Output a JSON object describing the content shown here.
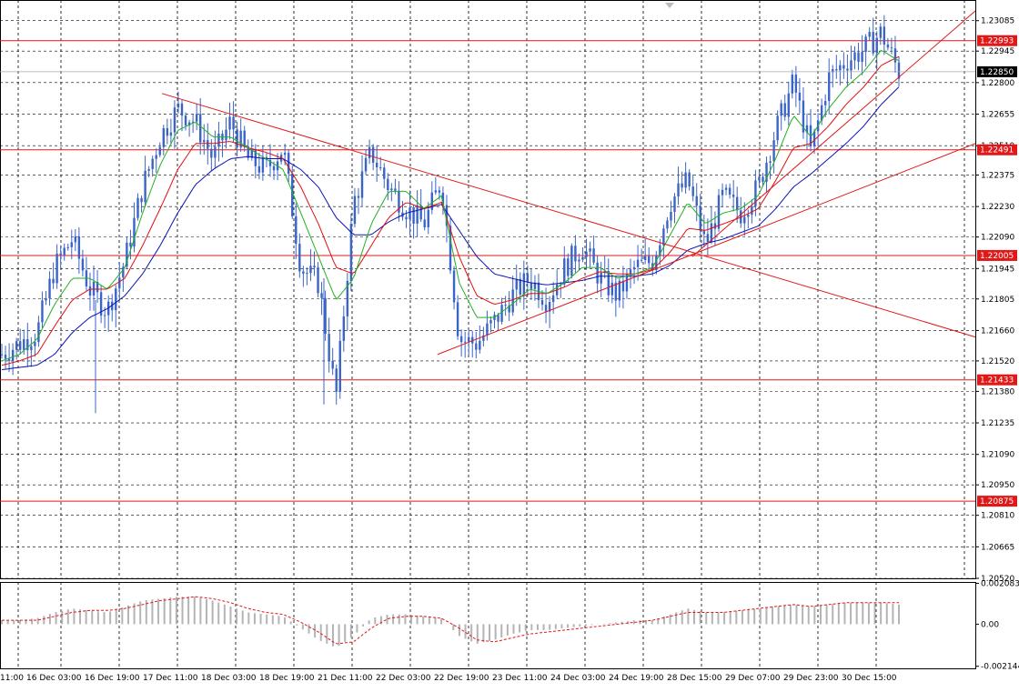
{
  "colors": {
    "background": "#ffffff",
    "grid": "#000000",
    "candle": "#3b64c8",
    "ma_fast": "#22b022",
    "ma_mid": "#e01010",
    "ma_slow": "#0a14b4",
    "level": "#e01818",
    "trend": "#e01818",
    "osc_hist": "#b4b4b4",
    "osc_signal": "#e01818",
    "bid_label": "#000000"
  },
  "chart_data": [
    {
      "type": "candlestick",
      "title": "",
      "ylim": [
        1.2052,
        1.2318
      ],
      "y_ticks": [
        "1.23085",
        "1.22945",
        "1.22800",
        "1.22655",
        "1.22510",
        "1.22375",
        "1.22230",
        "1.22090",
        "1.21945",
        "1.21805",
        "1.21660",
        "1.21520",
        "1.21380",
        "1.21235",
        "1.21090",
        "1.20950",
        "1.20810",
        "1.20665",
        "1.20520"
      ],
      "x_ticks": [
        "11:00",
        "16 Dec 03:00",
        "16 Dec 19:00",
        "17 Dec 11:00",
        "18 Dec 03:00",
        "18 Dec 19:00",
        "21 Dec 11:00",
        "22 Dec 03:00",
        "22 Dec 19:00",
        "23 Dec 11:00",
        "24 Dec 03:00",
        "24 Dec 19:00",
        "28 Dec 15:00",
        "29 Dec 07:00",
        "29 Dec 23:00",
        "30 Dec 15:00"
      ],
      "grid": true,
      "current_price": "1.22850",
      "levels": [
        "1.22993",
        "1.22491",
        "1.22005",
        "1.21433",
        "1.20875"
      ],
      "anchors": [
        1.2155,
        1.216,
        1.2165,
        1.2195,
        1.2208,
        1.2185,
        1.2175,
        1.2198,
        1.2232,
        1.2255,
        1.2268,
        1.2262,
        1.2245,
        1.2262,
        1.2245,
        1.224,
        1.225,
        1.2195,
        1.2188,
        1.2135,
        1.2225,
        1.2248,
        1.2232,
        1.2222,
        1.2215,
        1.2235,
        1.2162,
        1.216,
        1.217,
        1.2182,
        1.219,
        1.218,
        1.2195,
        1.2205,
        1.219,
        1.2182,
        1.2195,
        1.2198,
        1.2225,
        1.2235,
        1.2205,
        1.2228,
        1.222,
        1.2232,
        1.2258,
        1.228,
        1.2248,
        1.2282,
        1.229,
        1.2295,
        1.2303,
        1.2285
      ],
      "ma_fast_anchors": [
        1.2152,
        1.2155,
        1.2162,
        1.2178,
        1.219,
        1.219,
        1.2185,
        1.2195,
        1.222,
        1.2242,
        1.2258,
        1.2262,
        1.2255,
        1.2255,
        1.225,
        1.2245,
        1.224,
        1.222,
        1.22,
        1.218,
        1.219,
        1.2215,
        1.223,
        1.223,
        1.2222,
        1.2228,
        1.2188,
        1.2172,
        1.2172,
        1.2178,
        1.2185,
        1.2183,
        1.2188,
        1.2195,
        1.2195,
        1.219,
        1.2192,
        1.2195,
        1.221,
        1.2225,
        1.2215,
        1.222,
        1.2222,
        1.2228,
        1.2245,
        1.2265,
        1.2255,
        1.2268,
        1.2278,
        1.2285,
        1.2295,
        1.229
      ],
      "ma_mid_anchors": [
        1.215,
        1.2152,
        1.2155,
        1.2168,
        1.218,
        1.2185,
        1.2185,
        1.219,
        1.2205,
        1.2222,
        1.224,
        1.2252,
        1.2252,
        1.2253,
        1.225,
        1.2248,
        1.2245,
        1.2232,
        1.2215,
        1.2195,
        1.2192,
        1.2205,
        1.2218,
        1.2225,
        1.2222,
        1.2225,
        1.22,
        1.2182,
        1.2178,
        1.218,
        1.2183,
        1.2183,
        1.2186,
        1.219,
        1.2193,
        1.2192,
        1.2192,
        1.2194,
        1.2202,
        1.2213,
        1.2212,
        1.2215,
        1.2218,
        1.2222,
        1.2235,
        1.225,
        1.2252,
        1.226,
        1.227,
        1.2278,
        1.2288,
        1.2292
      ],
      "ma_slow_anchors": [
        1.2148,
        1.2149,
        1.215,
        1.2155,
        1.2165,
        1.2172,
        1.2176,
        1.2182,
        1.2192,
        1.2205,
        1.222,
        1.2233,
        1.224,
        1.2245,
        1.2246,
        1.2245,
        1.2245,
        1.224,
        1.2232,
        1.2218,
        1.221,
        1.221,
        1.2216,
        1.222,
        1.2222,
        1.2224,
        1.2212,
        1.22,
        1.2192,
        1.219,
        1.2188,
        1.2187,
        1.2188,
        1.2189,
        1.2191,
        1.2191,
        1.2191,
        1.2192,
        1.2196,
        1.2203,
        1.2206,
        1.2208,
        1.2211,
        1.2214,
        1.2222,
        1.2232,
        1.2238,
        1.2245,
        1.2252,
        1.226,
        1.227,
        1.2278
      ],
      "trend_lines": [
        {
          "from": [
            "15 Dec 21:00",
            1.2275
          ],
          "to": [
            "31 Dec 07:00",
            1.2163
          ]
        },
        {
          "from": [
            "22 Dec 17:00",
            1.2155
          ],
          "to": [
            "31 Dec 07:00",
            1.2252
          ]
        },
        {
          "from": [
            "28 Dec 15:00",
            1.22
          ],
          "to": [
            "31 Dec 07:00",
            1.2313
          ]
        }
      ]
    },
    {
      "type": "histogram",
      "title": "",
      "ylim": [
        -0.00225,
        0.00215
      ],
      "y_ticks": [
        "0.002083",
        "0.00",
        "-0.002144"
      ],
      "grid": true,
      "values": [
        0.0002,
        0.0002,
        0.0003,
        0.0006,
        0.0008,
        0.0007,
        0.0006,
        0.0009,
        0.0012,
        0.0013,
        0.0014,
        0.0014,
        0.0012,
        0.0009,
        0.0006,
        0.0005,
        0.0004,
        -0.0002,
        -0.0008,
        -0.0012,
        -0.0006,
        0.0003,
        0.0005,
        0.0005,
        0.0004,
        0.0003,
        -0.0006,
        -0.001,
        -0.0008,
        -0.0005,
        -0.0003,
        -0.0003,
        -0.0002,
        -0.0001,
        0.0,
        0.0001,
        0.0002,
        0.0002,
        0.0005,
        0.0008,
        0.0006,
        0.0006,
        0.0007,
        0.0008,
        0.0009,
        0.001,
        0.0009,
        0.001,
        0.0011,
        0.0011,
        0.0011,
        0.001
      ],
      "signal": [
        0.0002,
        0.0002,
        0.0002,
        0.0004,
        0.0006,
        0.0007,
        0.0007,
        0.0008,
        0.001,
        0.0012,
        0.0013,
        0.0014,
        0.0013,
        0.0011,
        0.0008,
        0.0006,
        0.0005,
        0.0001,
        -0.0004,
        -0.001,
        -0.0009,
        -0.0002,
        0.0003,
        0.0004,
        0.0004,
        0.0003,
        -0.0002,
        -0.0008,
        -0.0009,
        -0.0007,
        -0.0005,
        -0.0004,
        -0.0003,
        -0.0002,
        -0.0001,
        0.0,
        0.0001,
        0.0002,
        0.0004,
        0.0006,
        0.0006,
        0.0006,
        0.0007,
        0.0008,
        0.0009,
        0.001,
        0.0009,
        0.001,
        0.0011,
        0.0011,
        0.0011,
        0.0011
      ]
    }
  ]
}
